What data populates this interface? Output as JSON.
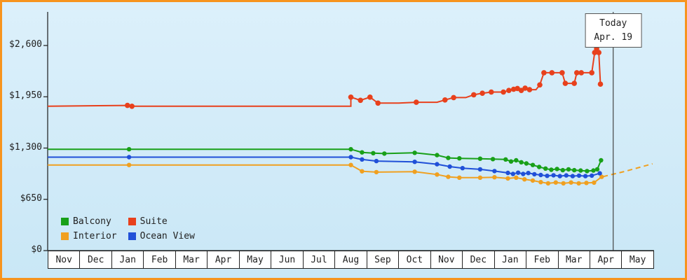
{
  "colors": {
    "frame_border": "#f7941e",
    "background_top": "#dcf0fb",
    "background_bottom": "#c9e7f6",
    "axis": "#1a1a1a",
    "text": "#222222",
    "month_row_bg": "#ffffff",
    "today_line": "#444444",
    "today_box_bg": "#ffffff",
    "today_box_border": "#555555"
  },
  "chart_data": {
    "type": "line",
    "title": "",
    "xlabel": "",
    "ylabel": "",
    "ylim": [
      0,
      2600
    ],
    "legend_position": "bottom-left",
    "grid": false,
    "y_ticks": [
      {
        "value": 0,
        "label": "$0"
      },
      {
        "value": 650,
        "label": "$650"
      },
      {
        "value": 1300,
        "label": "$1,300"
      },
      {
        "value": 1950,
        "label": "$1,950"
      },
      {
        "value": 2600,
        "label": "$2,600"
      }
    ],
    "categories": [
      "Nov",
      "Dec",
      "Jan",
      "Feb",
      "Mar",
      "Apr",
      "May",
      "Jun",
      "Jul",
      "Aug",
      "Sep",
      "Oct",
      "Nov",
      "Dec",
      "Jan",
      "Feb",
      "Mar",
      "Apr",
      "May"
    ],
    "today_marker": {
      "label": "Today",
      "date_label": "Apr. 19",
      "t": 17.72
    },
    "series": [
      {
        "name": "Balcony",
        "color": "#18a018",
        "marker_r": 3.2,
        "points": [
          [
            0,
            1285,
            0
          ],
          [
            2.55,
            1285,
            1
          ],
          [
            9.5,
            1285,
            1
          ],
          [
            9.85,
            1245,
            1
          ],
          [
            10.2,
            1235,
            1
          ],
          [
            10.55,
            1230,
            1
          ],
          [
            11.5,
            1240,
            1
          ],
          [
            12.2,
            1210,
            1
          ],
          [
            12.55,
            1175,
            1
          ],
          [
            12.9,
            1170,
            1
          ],
          [
            13.55,
            1165,
            1
          ],
          [
            13.95,
            1160,
            1
          ],
          [
            14.35,
            1155,
            1
          ],
          [
            14.52,
            1130,
            1
          ],
          [
            14.68,
            1145,
            1
          ],
          [
            14.84,
            1120,
            1
          ],
          [
            15.0,
            1105,
            1
          ],
          [
            15.2,
            1085,
            1
          ],
          [
            15.4,
            1060,
            1
          ],
          [
            15.6,
            1040,
            1
          ],
          [
            15.78,
            1025,
            1
          ],
          [
            15.96,
            1035,
            1
          ],
          [
            16.14,
            1020,
            1
          ],
          [
            16.32,
            1030,
            1
          ],
          [
            16.5,
            1020,
            1
          ],
          [
            16.7,
            1015,
            1
          ],
          [
            16.9,
            1008,
            1
          ],
          [
            17.1,
            1015,
            1
          ],
          [
            17.22,
            1030,
            1
          ],
          [
            17.34,
            1145,
            1
          ]
        ]
      },
      {
        "name": "Suite",
        "color": "#e8401c",
        "marker_r": 3.8,
        "points": [
          [
            0,
            1830,
            0
          ],
          [
            2.5,
            1840,
            1
          ],
          [
            2.64,
            1830,
            1
          ],
          [
            9.5,
            1830,
            0
          ],
          [
            9.5,
            1945,
            1
          ],
          [
            9.8,
            1905,
            1
          ],
          [
            10.1,
            1945,
            1
          ],
          [
            10.35,
            1870,
            1
          ],
          [
            11.0,
            1870,
            0
          ],
          [
            11.55,
            1880,
            1
          ],
          [
            12.2,
            1880,
            0
          ],
          [
            12.45,
            1910,
            1
          ],
          [
            12.72,
            1940,
            1
          ],
          [
            13.1,
            1940,
            0
          ],
          [
            13.35,
            1975,
            1
          ],
          [
            13.62,
            1995,
            1
          ],
          [
            13.9,
            2010,
            1
          ],
          [
            14.28,
            2010,
            1
          ],
          [
            14.45,
            2030,
            1
          ],
          [
            14.6,
            2045,
            1
          ],
          [
            14.72,
            2055,
            1
          ],
          [
            14.84,
            2030,
            1
          ],
          [
            14.96,
            2060,
            1
          ],
          [
            15.1,
            2040,
            1
          ],
          [
            15.3,
            2040,
            0
          ],
          [
            15.42,
            2100,
            1
          ],
          [
            15.55,
            2255,
            1
          ],
          [
            15.8,
            2255,
            1
          ],
          [
            16.12,
            2255,
            1
          ],
          [
            16.22,
            2120,
            1
          ],
          [
            16.5,
            2120,
            1
          ],
          [
            16.58,
            2255,
            1
          ],
          [
            16.72,
            2255,
            1
          ],
          [
            17.05,
            2255,
            1
          ],
          [
            17.14,
            2510,
            1
          ],
          [
            17.2,
            2560,
            1
          ],
          [
            17.27,
            2510,
            1
          ],
          [
            17.32,
            2110,
            1
          ]
        ]
      },
      {
        "name": "Interior",
        "color": "#f0a020",
        "marker_r": 3.2,
        "points": [
          [
            0,
            1085,
            0
          ],
          [
            2.55,
            1085,
            1
          ],
          [
            9.5,
            1085,
            1
          ],
          [
            9.85,
            1005,
            1
          ],
          [
            10.3,
            995,
            1
          ],
          [
            11.5,
            1000,
            1
          ],
          [
            12.2,
            965,
            1
          ],
          [
            12.55,
            935,
            1
          ],
          [
            12.9,
            925,
            1
          ],
          [
            13.55,
            925,
            1
          ],
          [
            14.0,
            930,
            1
          ],
          [
            14.42,
            915,
            1
          ],
          [
            14.68,
            925,
            1
          ],
          [
            14.94,
            903,
            1
          ],
          [
            15.2,
            888,
            1
          ],
          [
            15.45,
            868,
            1
          ],
          [
            15.68,
            853,
            1
          ],
          [
            15.92,
            863,
            1
          ],
          [
            16.16,
            853,
            1
          ],
          [
            16.4,
            863,
            1
          ],
          [
            16.64,
            853,
            1
          ],
          [
            16.88,
            858,
            1
          ],
          [
            17.12,
            862,
            1
          ],
          [
            17.36,
            935,
            1
          ]
        ],
        "projection": [
          [
            17.4,
            938
          ],
          [
            18.1,
            1005
          ],
          [
            18.95,
            1100
          ]
        ]
      },
      {
        "name": "Ocean View",
        "color": "#2050d8",
        "marker_r": 3.2,
        "points": [
          [
            0,
            1185,
            0
          ],
          [
            2.55,
            1185,
            1
          ],
          [
            9.5,
            1185,
            1
          ],
          [
            9.85,
            1155,
            1
          ],
          [
            10.3,
            1135,
            1
          ],
          [
            11.5,
            1125,
            1
          ],
          [
            12.2,
            1095,
            1
          ],
          [
            12.6,
            1065,
            1
          ],
          [
            13.0,
            1045,
            1
          ],
          [
            13.55,
            1030,
            1
          ],
          [
            14.0,
            1008,
            1
          ],
          [
            14.42,
            985,
            1
          ],
          [
            14.58,
            972,
            1
          ],
          [
            14.74,
            988,
            1
          ],
          [
            14.9,
            972,
            1
          ],
          [
            15.06,
            983,
            1
          ],
          [
            15.25,
            968,
            1
          ],
          [
            15.45,
            958,
            1
          ],
          [
            15.65,
            948,
            1
          ],
          [
            15.85,
            955,
            1
          ],
          [
            16.05,
            944,
            1
          ],
          [
            16.25,
            953,
            1
          ],
          [
            16.45,
            944,
            1
          ],
          [
            16.65,
            950,
            1
          ],
          [
            16.85,
            944,
            1
          ],
          [
            17.05,
            950,
            1
          ],
          [
            17.3,
            980,
            1
          ]
        ]
      }
    ]
  }
}
